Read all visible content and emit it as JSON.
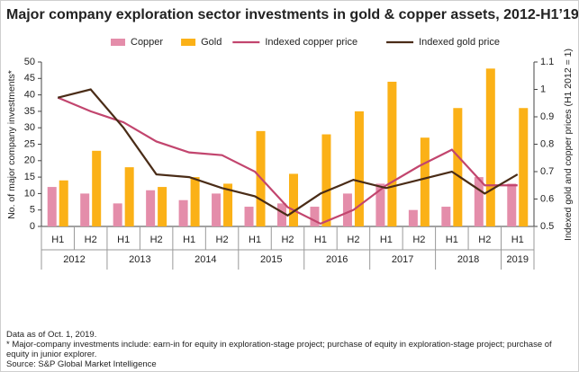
{
  "chart_data": {
    "type": "combo",
    "title": "Major company exploration sector investments in gold & copper assets, 2012-H1’19",
    "ylabel": "No. of major company investments*",
    "y2label": "Indexed gold and copper prices (H1 2012 = 1)",
    "categories": [
      "H1",
      "H2",
      "H1",
      "H2",
      "H1",
      "H2",
      "H1",
      "H2",
      "H1",
      "H2",
      "H1",
      "H2",
      "H1",
      "H2",
      "H1"
    ],
    "years": [
      "2012",
      "2013",
      "2014",
      "2015",
      "2016",
      "2017",
      "2018",
      "2019"
    ],
    "series": [
      {
        "name": "Copper",
        "type": "bar",
        "color": "#e48daa",
        "values": [
          12,
          10,
          7,
          11,
          8,
          10,
          6,
          7,
          6,
          10,
          13,
          5,
          6,
          15,
          13
        ]
      },
      {
        "name": "Gold",
        "type": "bar",
        "color": "#fbb117",
        "values": [
          14,
          23,
          18,
          12,
          15,
          13,
          29,
          16,
          28,
          35,
          44,
          27,
          36,
          48,
          36
        ]
      },
      {
        "name": "Indexed copper price",
        "type": "line",
        "axis": "y2",
        "color": "#c2456e",
        "values": [
          0.97,
          0.92,
          0.88,
          0.81,
          0.77,
          0.76,
          0.7,
          0.57,
          0.51,
          0.56,
          0.65,
          0.72,
          0.78,
          0.65,
          0.65
        ]
      },
      {
        "name": "Indexed gold price",
        "type": "line",
        "axis": "y2",
        "color": "#4a2c17",
        "values": [
          0.97,
          1.0,
          0.86,
          0.69,
          0.68,
          0.64,
          0.61,
          0.54,
          0.62,
          0.67,
          0.64,
          0.67,
          0.7,
          0.62,
          0.69
        ]
      }
    ],
    "ylim": [
      0,
      50
    ],
    "yticks": [
      0,
      5,
      10,
      15,
      20,
      25,
      30,
      35,
      40,
      45,
      50
    ],
    "y2lim": [
      0.5,
      1.1
    ],
    "y2ticks": [
      0.5,
      0.6,
      0.7,
      0.8,
      0.9,
      1,
      1.1
    ],
    "grid": false,
    "legend": "top",
    "notes": [
      "Data as of Oct. 1, 2019.",
      "* Major-company investments include: earn-in for equity in exploration-stage project; purchase of equity in exploration-stage project; purchase of equity in junior explorer."
    ],
    "source": "Source: S&P Global Market Intelligence"
  }
}
